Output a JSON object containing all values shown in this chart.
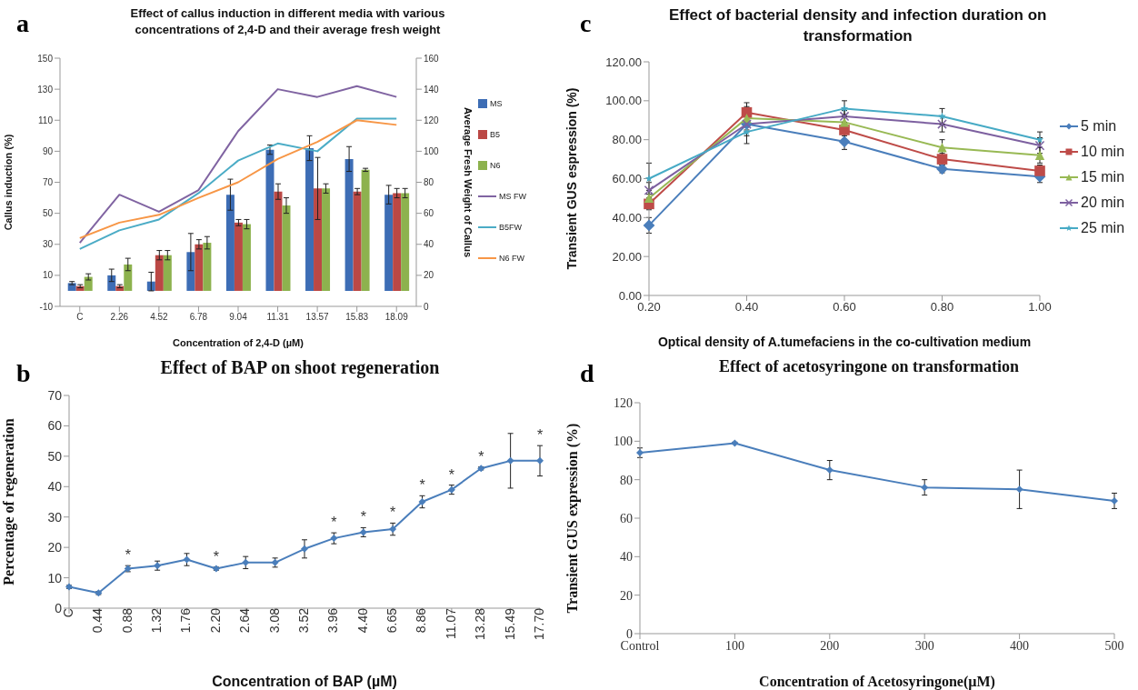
{
  "chart_data": [
    {
      "type": "bar",
      "title": "Effect of callus induction in different media with various concentrations of 2,4-D and their average fresh weight",
      "xlabel": "Concentration of 2,4-D (µM)",
      "ylabel": "Callus induction (%)",
      "y2label": "Average Fresh Weight of Callus",
      "annotations": [
        "a"
      ],
      "categories": [
        "C",
        "2.26",
        "4.52",
        "6.78",
        "9.04",
        "11.31",
        "13.57",
        "15.83",
        "18.09"
      ],
      "series": [
        {
          "name": "MS",
          "color": "#3d6db5",
          "values": [
            5,
            10,
            6,
            25,
            62,
            91,
            92,
            85,
            62
          ],
          "errors": [
            1,
            4,
            6,
            12,
            10,
            3,
            8,
            8,
            6
          ]
        },
        {
          "name": "B5",
          "color": "#bb4845",
          "values": [
            3,
            3,
            23,
            30,
            44,
            64,
            66,
            64,
            63
          ],
          "errors": [
            1,
            1,
            3,
            3,
            2,
            5,
            20,
            2,
            3
          ]
        },
        {
          "name": "N6",
          "color": "#8db24e",
          "values": [
            9,
            17,
            23,
            31,
            43,
            55,
            66,
            78,
            63
          ],
          "errors": [
            2,
            4,
            3,
            4,
            3,
            5,
            3,
            1,
            3
          ]
        },
        {
          "name": "MS FW",
          "type": "line",
          "axis": "y2",
          "color": "#8064a2",
          "values": [
            41,
            72,
            61,
            75,
            113,
            140,
            135,
            142,
            135
          ]
        },
        {
          "name": "B5FW",
          "type": "line",
          "axis": "y2",
          "color": "#4bacc6",
          "values": [
            37,
            49,
            56,
            73,
            94,
            105,
            100,
            121,
            121
          ]
        },
        {
          "name": "N6 FW",
          "type": "line",
          "axis": "y2",
          "color": "#f79646",
          "values": [
            44,
            54,
            59,
            70,
            80,
            95,
            106,
            120,
            117
          ]
        }
      ],
      "ylim": [
        -10,
        150
      ],
      "yticks": [
        -10,
        10,
        30,
        50,
        70,
        90,
        110,
        130,
        150
      ],
      "y2lim": [
        0,
        160
      ],
      "y2ticks": [
        0,
        20,
        40,
        60,
        80,
        100,
        120,
        140,
        160
      ],
      "legend": "right",
      "marker": "none"
    },
    {
      "type": "line",
      "title": "Effect of bacterial density and infection duration on transformation",
      "xlabel": "Optical density of A.tumefaciens in the co-cultivation medium",
      "ylabel": "Transient GUS espression (%)",
      "annotations": [
        "c"
      ],
      "categories": [
        "0.20",
        "0.40",
        "0.60",
        "0.80",
        "1.00"
      ],
      "series": [
        {
          "name": "5 min",
          "color": "#4a7ebb",
          "marker": "diamond",
          "values": [
            36,
            88,
            79,
            65,
            61
          ],
          "errors": [
            4,
            4,
            4,
            2,
            3
          ]
        },
        {
          "name": "10 min",
          "color": "#be4b48",
          "marker": "square",
          "values": [
            47,
            94,
            85,
            70,
            64
          ],
          "errors": [
            3,
            5,
            3,
            3,
            3
          ]
        },
        {
          "name": "15 min",
          "color": "#98b954",
          "marker": "triangle",
          "values": [
            50,
            91,
            89,
            76,
            72
          ],
          "errors": [
            4,
            6,
            4,
            4,
            4
          ]
        },
        {
          "name": "20 min",
          "color": "#7d60a0",
          "marker": "cross",
          "values": [
            54,
            88,
            92,
            88,
            77
          ],
          "errors": [
            4,
            6,
            3,
            4,
            4
          ]
        },
        {
          "name": "25 min",
          "color": "#46aac5",
          "marker": "star",
          "values": [
            60,
            84,
            96,
            92,
            80
          ],
          "errors": [
            8,
            6,
            4,
            4,
            4
          ]
        }
      ],
      "ylim": [
        0,
        120
      ],
      "yticks": [
        {
          "value": 0,
          "label": "0.00"
        },
        {
          "value": 20,
          "label": "20.00"
        },
        {
          "value": 40,
          "label": "40.00"
        },
        {
          "value": 60,
          "label": "60.00"
        },
        {
          "value": 80,
          "label": "80.00"
        },
        {
          "value": 100,
          "label": "100.00"
        },
        {
          "value": 120,
          "label": "120.00"
        }
      ],
      "legend": "right"
    },
    {
      "type": "line",
      "title": "Effect of BAP on shoot regeneration",
      "xlabel": "Concentration of BAP (µM)",
      "ylabel": "Percentage of regeneration",
      "annotations": [
        "b",
        "*",
        "*",
        "*",
        "*",
        "*",
        "*",
        "*",
        "*",
        "*"
      ],
      "categories": [
        "C",
        "0.44",
        "0.88",
        "1.32",
        "1.76",
        "2.20",
        "2.64",
        "3.08",
        "3.52",
        "3.96",
        "4.40",
        "6.65",
        "8.86",
        "11.07",
        "13.28",
        "15.49",
        "17.70"
      ],
      "values": [
        7,
        5,
        13,
        14,
        16,
        13,
        15,
        15,
        19.5,
        23,
        25,
        26,
        35,
        39,
        46,
        48.5,
        48.5
      ],
      "errors": [
        0.5,
        0.5,
        1,
        1.5,
        2,
        0.5,
        2,
        1.5,
        3,
        1.8,
        1.5,
        2,
        2,
        1.5,
        0.5,
        9,
        5
      ],
      "color": "#4a7ebb",
      "ylim": [
        0,
        70
      ],
      "yticks": [
        0,
        10,
        20,
        30,
        40,
        50,
        60,
        70
      ],
      "marker": "diamond"
    },
    {
      "type": "line",
      "title": "Effect of acetosyringone on transformation",
      "xlabel": "Concentration of Acetosyringone(µM)",
      "ylabel": "Transient GUS expression (%)",
      "annotations": [
        "d"
      ],
      "categories": [
        "Control",
        "100",
        "200",
        "300",
        "400",
        "500"
      ],
      "values": [
        94,
        99,
        85,
        76,
        75,
        69
      ],
      "errors": [
        2.5,
        0.5,
        5,
        4,
        10,
        4
      ],
      "color": "#4a7ebb",
      "ylim": [
        0,
        120
      ],
      "yticks": [
        0,
        20,
        40,
        60,
        80,
        100,
        120
      ],
      "marker": "diamond"
    }
  ]
}
